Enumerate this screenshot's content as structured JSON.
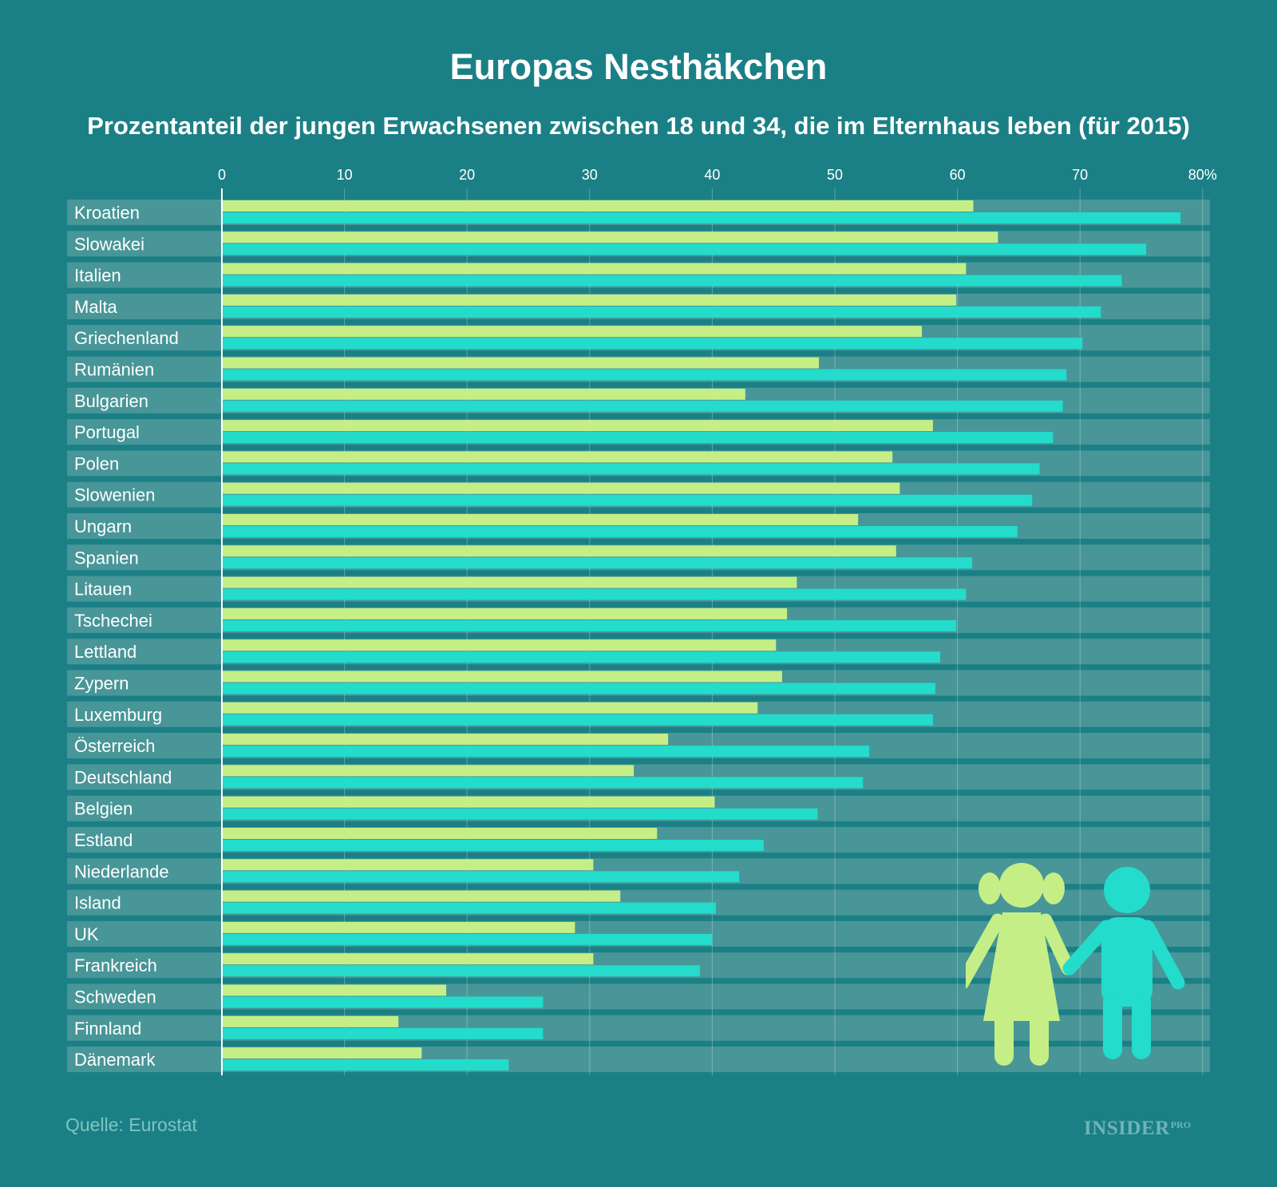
{
  "header": {
    "title": "Europas Nesthäkchen",
    "subtitle": "Prozentanteil der jungen Erwachsenen zwischen 18 und 34, die im Elternhaus leben (für 2015)"
  },
  "footer": {
    "source": "Quelle: Eurostat",
    "brand_name": "INSIDER",
    "brand_suffix": "PRO"
  },
  "colors": {
    "background": "#1b8086",
    "row_band": "#489698",
    "series_a": "#c5ef86",
    "series_b": "#23dccb"
  },
  "chart_data": {
    "type": "bar",
    "orientation": "horizontal",
    "title": "Europas Nesthäkchen",
    "subtitle": "Prozentanteil der jungen Erwachsenen zwischen 18 und 34, die im Elternhaus leben (für 2015)",
    "xlim": [
      0,
      80
    ],
    "ticks": [
      "0",
      "10",
      "20",
      "30",
      "40",
      "50",
      "60",
      "70",
      "80%"
    ],
    "categories": [
      "Kroatien",
      "Slowakei",
      "Italien",
      "Malta",
      "Griechenland",
      "Rumänien",
      "Bulgarien",
      "Portugal",
      "Polen",
      "Slowenien",
      "Ungarn",
      "Spanien",
      "Litauen",
      "Tschechei",
      "Lettland",
      "Zypern",
      "Luxemburg",
      "Österreich",
      "Deutschland",
      "Belgien",
      "Estland",
      "Niederlande",
      "Island",
      "UK",
      "Frankreich",
      "Schweden",
      "Finnland",
      "Dänemark"
    ],
    "series": [
      {
        "name": "Frauen",
        "color": "#c5ef86",
        "values": [
          61.3,
          63.3,
          60.7,
          59.9,
          57.1,
          48.7,
          42.7,
          58.0,
          54.7,
          55.3,
          51.9,
          55.0,
          46.9,
          46.1,
          45.2,
          45.7,
          43.7,
          36.4,
          33.6,
          40.2,
          35.5,
          30.3,
          32.5,
          28.8,
          30.3,
          18.3,
          14.4,
          16.3
        ]
      },
      {
        "name": "Männer",
        "color": "#23dccb",
        "values": [
          78.2,
          75.4,
          73.4,
          71.7,
          70.2,
          68.9,
          68.6,
          67.8,
          66.7,
          66.1,
          64.9,
          61.2,
          60.7,
          59.9,
          58.6,
          58.2,
          58.0,
          52.8,
          52.3,
          48.6,
          44.2,
          42.2,
          40.3,
          40.0,
          39.0,
          26.2,
          26.2,
          23.4
        ]
      }
    ]
  }
}
